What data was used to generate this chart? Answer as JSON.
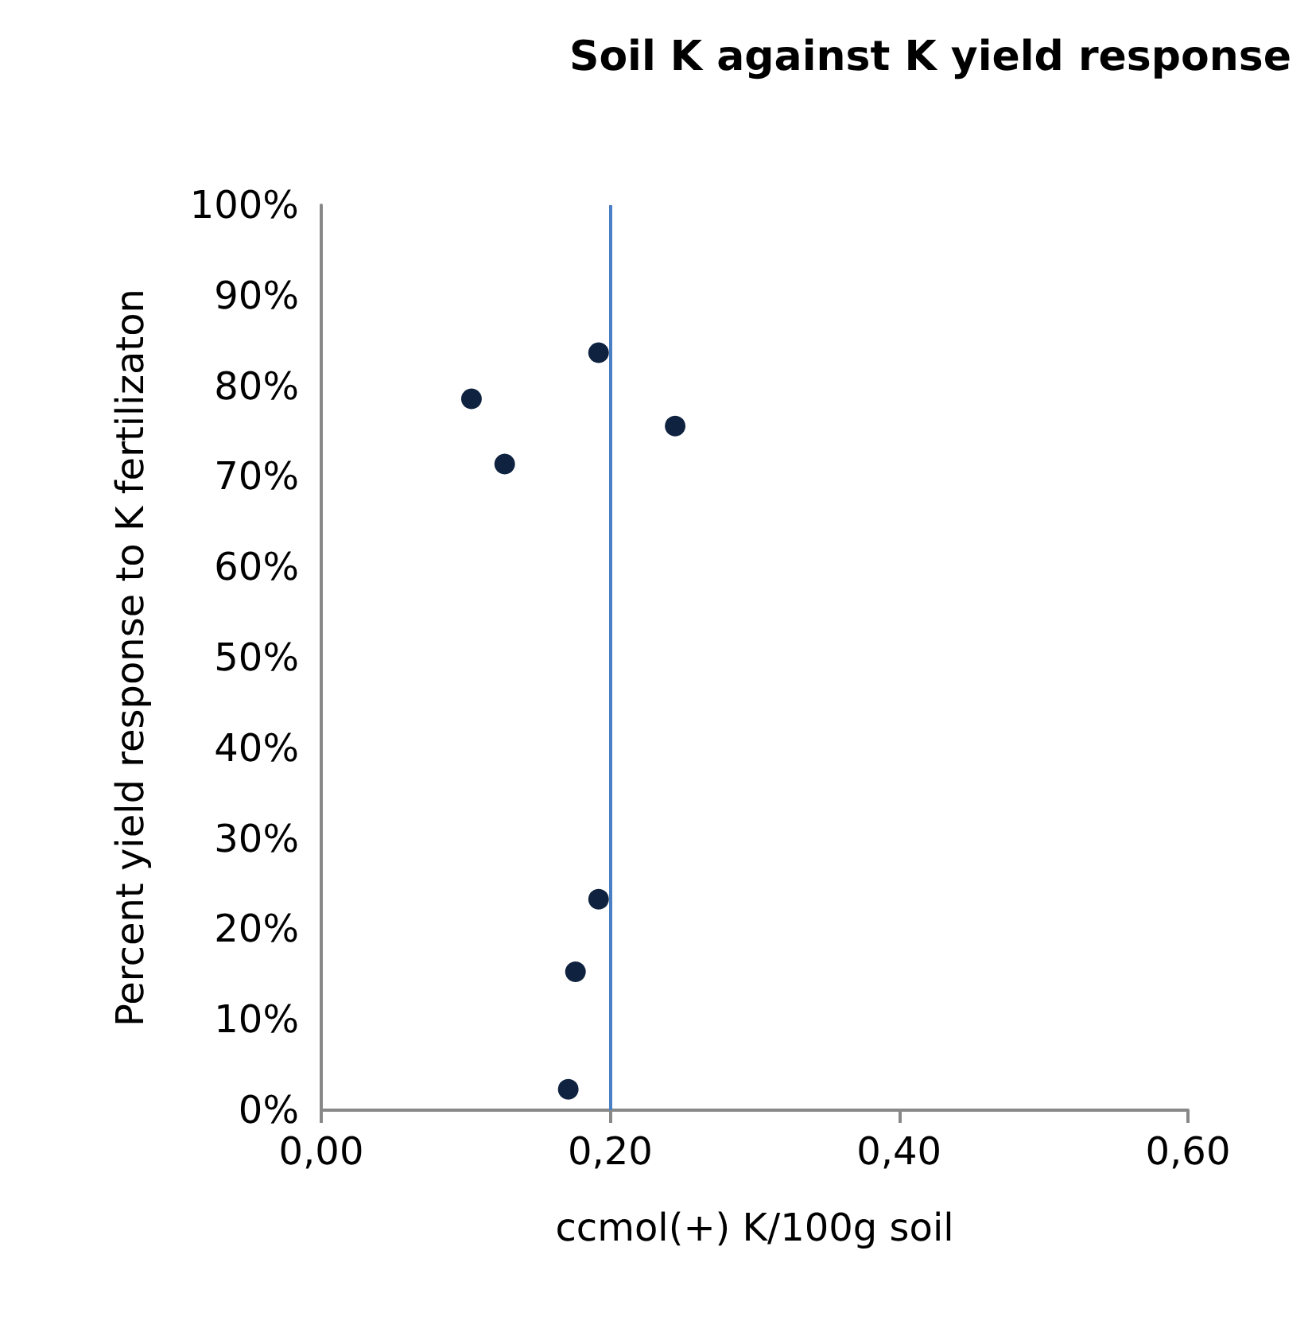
{
  "chart_data": {
    "type": "scatter",
    "title": "Soil K against K yield response",
    "xlabel": "ccmol(+) K/100g soil",
    "ylabel": "Percent yield response to K fertilizaton",
    "x": [
      0.104,
      0.127,
      0.192,
      0.245,
      0.192,
      0.176,
      0.171
    ],
    "values": [
      78.6,
      71.4,
      83.7,
      75.6,
      23.3,
      15.3,
      2.3
    ],
    "color": "#0f2340",
    "marker": "circle",
    "grid": false,
    "xlim": [
      0,
      0.6
    ],
    "xticks": [
      {
        "value": 0,
        "label": "0,00"
      },
      {
        "value": 0.2,
        "label": "0,20"
      },
      {
        "value": 0.4,
        "label": "0,40"
      },
      {
        "value": 0.6,
        "label": "0,60"
      }
    ],
    "ylim": [
      0,
      100
    ],
    "yticks": [
      {
        "value": 0,
        "label": "0%"
      },
      {
        "value": 10,
        "label": "10%"
      },
      {
        "value": 20,
        "label": "20%"
      },
      {
        "value": 30,
        "label": "30%"
      },
      {
        "value": 40,
        "label": "40%"
      },
      {
        "value": 50,
        "label": "50%"
      },
      {
        "value": 60,
        "label": "60%"
      },
      {
        "value": 70,
        "label": "70%"
      },
      {
        "value": 80,
        "label": "80%"
      },
      {
        "value": 90,
        "label": "90%"
      },
      {
        "value": 100,
        "label": "100%"
      }
    ],
    "ref_lines": [
      {
        "axis": "x",
        "value": 0.2,
        "color": "#4a7fc4",
        "line_style": "solid"
      }
    ]
  }
}
